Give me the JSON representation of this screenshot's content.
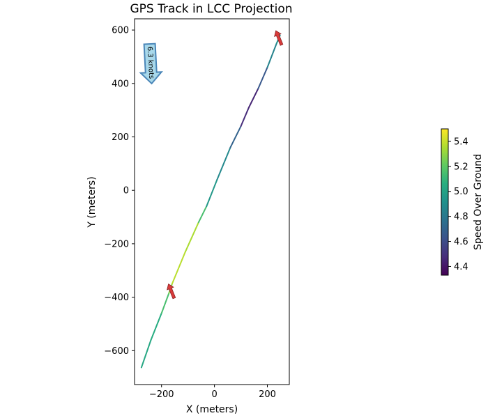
{
  "chart_data": {
    "type": "line",
    "title": "GPS Track in LCC Projection",
    "xlabel": "X (meters)",
    "ylabel": "Y (meters)",
    "xlim": [
      -302,
      283
    ],
    "ylim": [
      -727,
      642
    ],
    "xticks": [
      -200,
      0,
      200
    ],
    "yticks": [
      -600,
      -400,
      -200,
      0,
      200,
      400,
      600
    ],
    "xtick_labels": [
      "−200",
      "0",
      "200"
    ],
    "ytick_labels": [
      "−600",
      "−400",
      "−200",
      "0",
      "200",
      "400",
      "600"
    ],
    "colormap": "viridis",
    "colorbar": {
      "label": "Speed Over Ground",
      "range": [
        4.33,
        5.5
      ],
      "ticks": [
        4.4,
        4.6,
        4.8,
        5.0,
        5.2,
        5.4
      ],
      "tick_labels": [
        "4.4",
        "4.6",
        "4.8",
        "5.0",
        "5.2",
        "5.4"
      ]
    },
    "track": [
      {
        "x": -276,
        "y": -663,
        "speed": 5.05
      },
      {
        "x": -240,
        "y": -560,
        "speed": 5.0
      },
      {
        "x": -200,
        "y": -460,
        "speed": 5.1
      },
      {
        "x": -172,
        "y": -385,
        "speed": 5.2
      },
      {
        "x": -160,
        "y": -350,
        "speed": 5.35
      },
      {
        "x": -110,
        "y": -230,
        "speed": 5.4
      },
      {
        "x": -60,
        "y": -120,
        "speed": 5.3
      },
      {
        "x": -30,
        "y": -60,
        "speed": 5.0
      },
      {
        "x": 10,
        "y": 40,
        "speed": 4.9
      },
      {
        "x": 60,
        "y": 160,
        "speed": 4.85
      },
      {
        "x": 100,
        "y": 240,
        "speed": 4.55
      },
      {
        "x": 130,
        "y": 310,
        "speed": 4.4
      },
      {
        "x": 165,
        "y": 380,
        "speed": 4.5
      },
      {
        "x": 200,
        "y": 460,
        "speed": 4.8
      },
      {
        "x": 235,
        "y": 550,
        "speed": 4.9
      },
      {
        "x": 248,
        "y": 580,
        "speed": 4.9
      }
    ],
    "direction_arrows": [
      {
        "x": -163,
        "y": -377,
        "angle_deg": 248,
        "color": "#d93b3b"
      },
      {
        "x": 243,
        "y": 571,
        "angle_deg": 248,
        "color": "#d93b3b"
      }
    ],
    "wind_arrow": {
      "label": "6.3 knots",
      "fill": "#a8d8ea",
      "stroke": "#4a86b8"
    }
  }
}
